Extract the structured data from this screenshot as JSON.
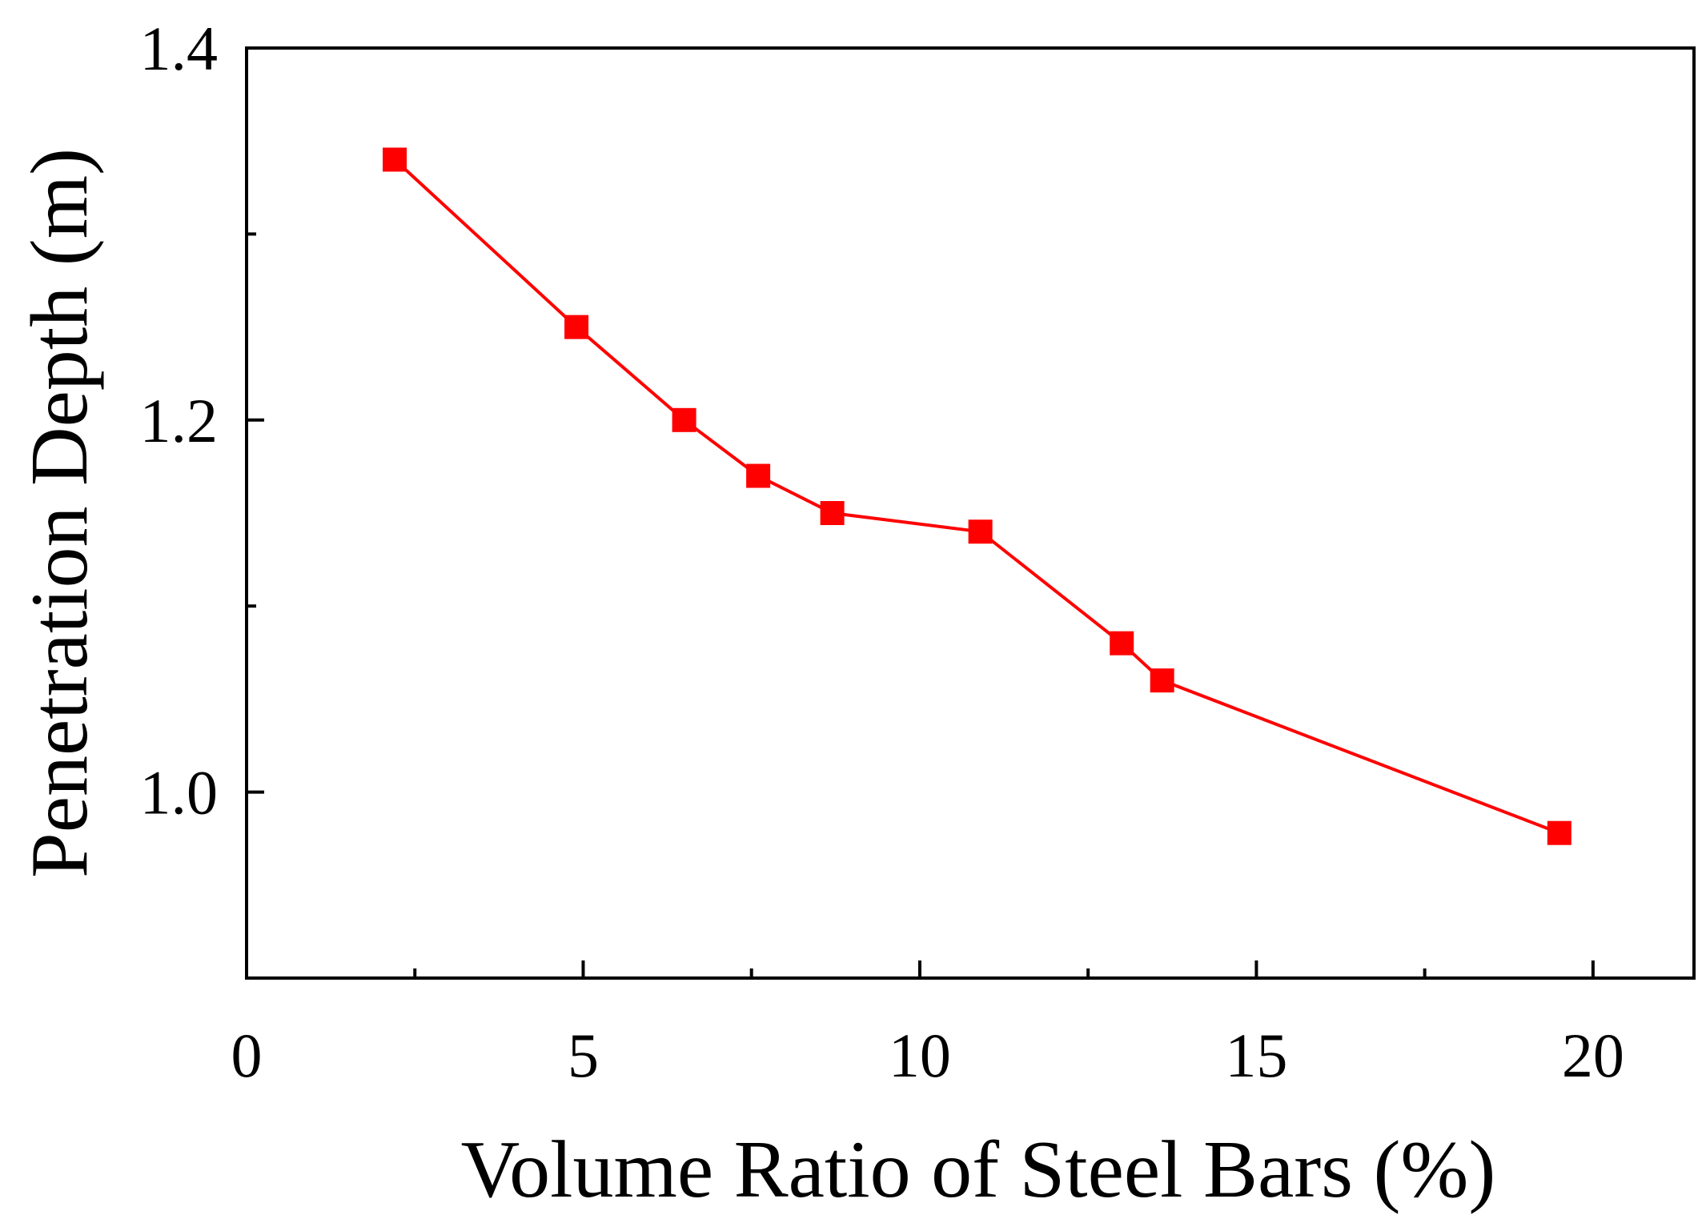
{
  "chart_data": {
    "type": "line",
    "title": "",
    "xlabel": "Volume Ratio of Steel Bars (%)",
    "ylabel": "Penetration Depth (m)",
    "xlim": [
      0,
      21.5
    ],
    "ylim": [
      0.9,
      1.4
    ],
    "x_ticks": [
      {
        "value": 0,
        "label": "0"
      },
      {
        "value": 5,
        "label": "5"
      },
      {
        "value": 10,
        "label": "10"
      },
      {
        "value": 15,
        "label": "15"
      },
      {
        "value": 20,
        "label": "20"
      }
    ],
    "x_minor_ticks": [
      2.5,
      7.5,
      12.5,
      17.5
    ],
    "y_ticks": [
      {
        "value": 1.0,
        "label": "1.0"
      },
      {
        "value": 1.2,
        "label": "1.2"
      },
      {
        "value": 1.4,
        "label": "1.4"
      }
    ],
    "y_minor_ticks": [
      1.1,
      1.3
    ],
    "grid": false,
    "legend": "none",
    "series": [
      {
        "name": "Penetration Depth",
        "color": "#ff0000",
        "marker": "square",
        "x": [
          2.2,
          4.9,
          6.5,
          7.6,
          8.7,
          10.9,
          13.0,
          13.6,
          19.5
        ],
        "y": [
          1.34,
          1.25,
          1.2,
          1.17,
          1.15,
          1.14,
          1.08,
          1.06,
          0.978
        ]
      }
    ]
  }
}
